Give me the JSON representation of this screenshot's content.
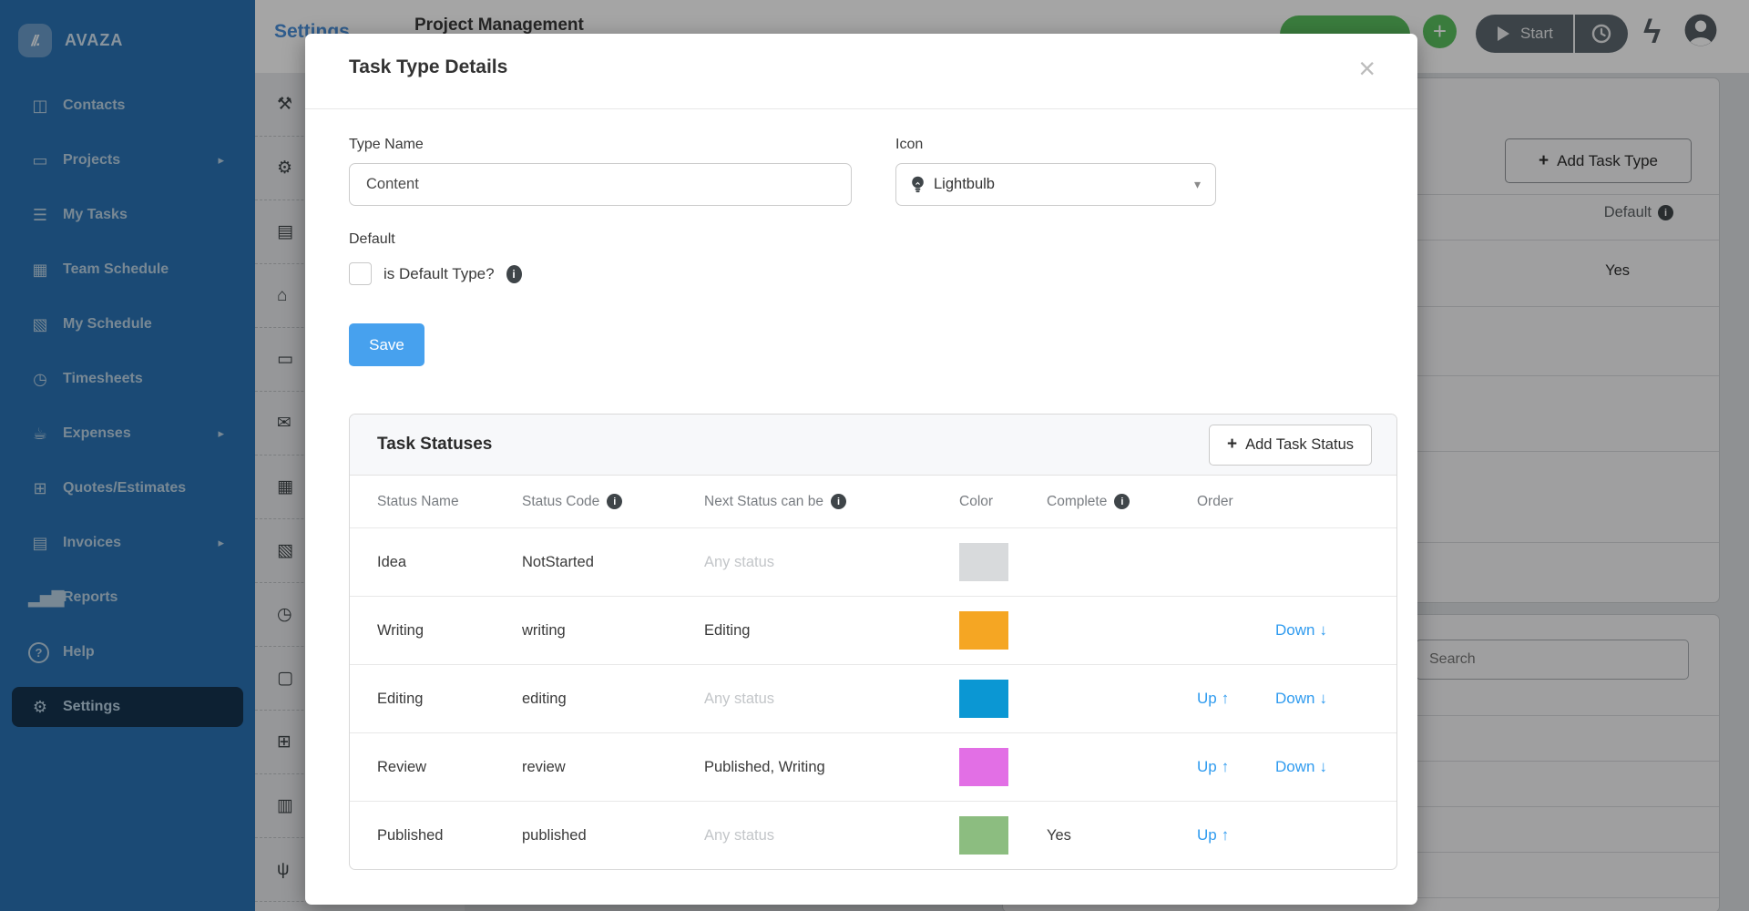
{
  "app": {
    "brand": "AVAZA"
  },
  "sidebar": {
    "items": [
      {
        "label": "Contacts",
        "icon": "contacts-icon",
        "glyph": "◫",
        "submenu": false,
        "active": false
      },
      {
        "label": "Projects",
        "icon": "projects-folder-icon",
        "glyph": "▭",
        "submenu": true,
        "active": false
      },
      {
        "label": "My Tasks",
        "icon": "task-list-icon",
        "glyph": "☰",
        "submenu": false,
        "active": false
      },
      {
        "label": "Team Schedule",
        "icon": "team-calendar-icon",
        "glyph": "▦",
        "submenu": false,
        "active": false
      },
      {
        "label": "My Schedule",
        "icon": "my-calendar-icon",
        "glyph": "▧",
        "submenu": false,
        "active": false
      },
      {
        "label": "Timesheets",
        "icon": "stopwatch-icon",
        "glyph": "◷",
        "submenu": false,
        "active": false
      },
      {
        "label": "Expenses",
        "icon": "expense-cup-icon",
        "glyph": "☕",
        "submenu": true,
        "active": false
      },
      {
        "label": "Quotes/Estimates",
        "icon": "calculator-icon",
        "glyph": "⊞",
        "submenu": false,
        "active": false
      },
      {
        "label": "Invoices",
        "icon": "invoice-icon",
        "glyph": "▤",
        "submenu": true,
        "active": false
      },
      {
        "label": "Reports",
        "icon": "chart-icon",
        "glyph": "▂▅▇",
        "submenu": false,
        "active": false
      },
      {
        "label": "Help",
        "icon": "help-icon",
        "glyph": "?",
        "submenu": false,
        "active": false
      },
      {
        "label": "Settings",
        "icon": "gear-icon",
        "glyph": "⚙",
        "submenu": false,
        "active": true
      }
    ]
  },
  "topbar": {
    "page_title": "Settings",
    "breadcrumb_fragment": "Project Management",
    "plus_glyph": "+",
    "start_label": "Start"
  },
  "background": {
    "add_task_type_label": "Add Task Type",
    "default_header": "Default",
    "yes_value": "Yes",
    "search_placeholder": "Search",
    "settings_menu_icons": [
      {
        "icon": "wrench-icon",
        "glyph": "⚒"
      },
      {
        "icon": "gears-icon",
        "glyph": "⚙"
      },
      {
        "icon": "receipt-icon",
        "glyph": "▤"
      },
      {
        "icon": "shop-icon",
        "glyph": "⌂"
      },
      {
        "icon": "credit-card-icon",
        "glyph": "▭"
      },
      {
        "icon": "envelope-icon",
        "glyph": "✉"
      },
      {
        "icon": "schedule-icon",
        "glyph": "▦"
      },
      {
        "icon": "calendar-icon",
        "glyph": "▧"
      },
      {
        "icon": "clock-icon",
        "glyph": "◷"
      },
      {
        "icon": "screen-icon",
        "glyph": "▢"
      },
      {
        "icon": "calculator-icon",
        "glyph": "⊞"
      },
      {
        "icon": "document-icon",
        "glyph": "▥"
      },
      {
        "icon": "plug-icon",
        "glyph": "ψ"
      }
    ]
  },
  "modal": {
    "title": "Task Type Details",
    "close_glyph": "×",
    "caret_glyph": "▾",
    "fields": {
      "type_name_label": "Type Name",
      "type_name_value": "Content",
      "icon_label": "Icon",
      "icon_value": "Lightbulb"
    },
    "default_section": {
      "label": "Default",
      "checkbox_label": "is Default Type?"
    },
    "save_label": "Save",
    "statuses": {
      "title": "Task Statuses",
      "add_label": "Add Task Status",
      "plus_glyph": "+",
      "columns": [
        "Status Name",
        "Status Code",
        "Next Status can be",
        "Color",
        "Complete",
        "Order"
      ],
      "info_columns": [
        1,
        2,
        4
      ],
      "up_label": "Up",
      "down_label": "Down",
      "arrow_up": "↑",
      "arrow_down": "↓",
      "rows": [
        {
          "name": "Idea",
          "code": "NotStarted",
          "next": "Any status",
          "next_muted": true,
          "color": "#d8dadc",
          "complete": "",
          "up": false,
          "down": false
        },
        {
          "name": "Writing",
          "code": "writing",
          "next": "Editing",
          "next_muted": false,
          "color": "#f5a623",
          "complete": "",
          "up": false,
          "down": true
        },
        {
          "name": "Editing",
          "code": "editing",
          "next": "Any status",
          "next_muted": true,
          "color": "#0b97d3",
          "complete": "",
          "up": true,
          "down": true
        },
        {
          "name": "Review",
          "code": "review",
          "next": "Published, Writing",
          "next_muted": false,
          "color": "#e26fe5",
          "complete": "",
          "up": true,
          "down": true
        },
        {
          "name": "Published",
          "code": "published",
          "next": "Any status",
          "next_muted": true,
          "color": "#8cbd80",
          "complete": "Yes",
          "up": true,
          "down": false
        }
      ]
    }
  },
  "colors": {
    "sidebar_blue": "#2a72b4",
    "sidebar_active": "#15344f",
    "accent_green": "#5abf5f",
    "save_blue": "#47a1ee",
    "link_blue": "#2f9bef"
  }
}
